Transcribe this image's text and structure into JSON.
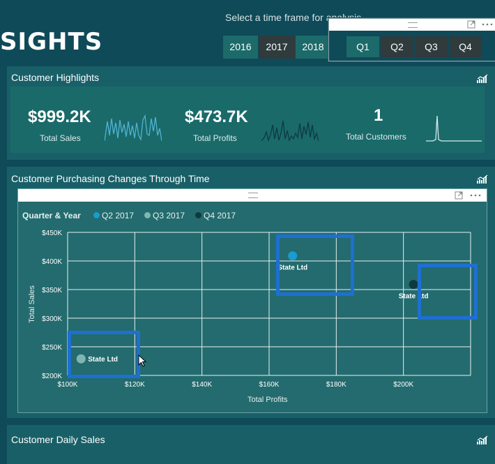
{
  "header": {
    "title_fragment": "SIGHTS",
    "timeframe_label": "Select a time frame for analysis",
    "years": [
      "2016",
      "2017",
      "2018"
    ],
    "selected_year": "2017",
    "quarters": [
      "Q1",
      "Q2",
      "Q3",
      "Q4"
    ],
    "selected_quarter": "Q1"
  },
  "highlights": {
    "title": "Customer Highlights",
    "kpis": [
      {
        "value": "$999.2K",
        "label": "Total Sales"
      },
      {
        "value": "$473.7K",
        "label": "Total Profits"
      },
      {
        "value": "1",
        "label": "Total Customers"
      }
    ]
  },
  "purchasing": {
    "title": "Customer Purchasing Changes Through Time",
    "legend_title": "Quarter & Year"
  },
  "daily": {
    "title": "Customer Daily Sales"
  },
  "colors": {
    "bg": "#0f4a58",
    "section": "#195f68",
    "q2": "#1a9bd1",
    "q3": "#7fb7b0",
    "q4": "#0e3a3f",
    "highlight": "#1e6fd2"
  },
  "icons": [
    "chart-icon",
    "expand-icon",
    "more-icon",
    "grip-icon",
    "cursor-icon"
  ],
  "chart_data": {
    "type": "scatter",
    "xlabel": "Total Profits",
    "ylabel": "Total Sales",
    "xlim": [
      100000,
      220000
    ],
    "ylim": [
      200000,
      450000
    ],
    "x_ticks": [
      "$100K",
      "$120K",
      "$140K",
      "$160K",
      "$180K",
      "$200K"
    ],
    "y_ticks": [
      "$450K",
      "$400K",
      "$350K",
      "$300K",
      "$250K",
      "$200K"
    ],
    "legend_position": "top-left",
    "grid": true,
    "series": [
      {
        "name": "Q2 2017",
        "color": "#1a9bd1",
        "points": [
          {
            "x": 167000,
            "y": 409000,
            "label": "State Ltd"
          }
        ]
      },
      {
        "name": "Q3 2017",
        "color": "#7fb7b0",
        "points": [
          {
            "x": 104000,
            "y": 229000,
            "label": "State Ltd"
          }
        ]
      },
      {
        "name": "Q4 2017",
        "color": "#0e3a3f",
        "points": [
          {
            "x": 203000,
            "y": 359000,
            "label": "State Ltd"
          }
        ]
      }
    ]
  }
}
